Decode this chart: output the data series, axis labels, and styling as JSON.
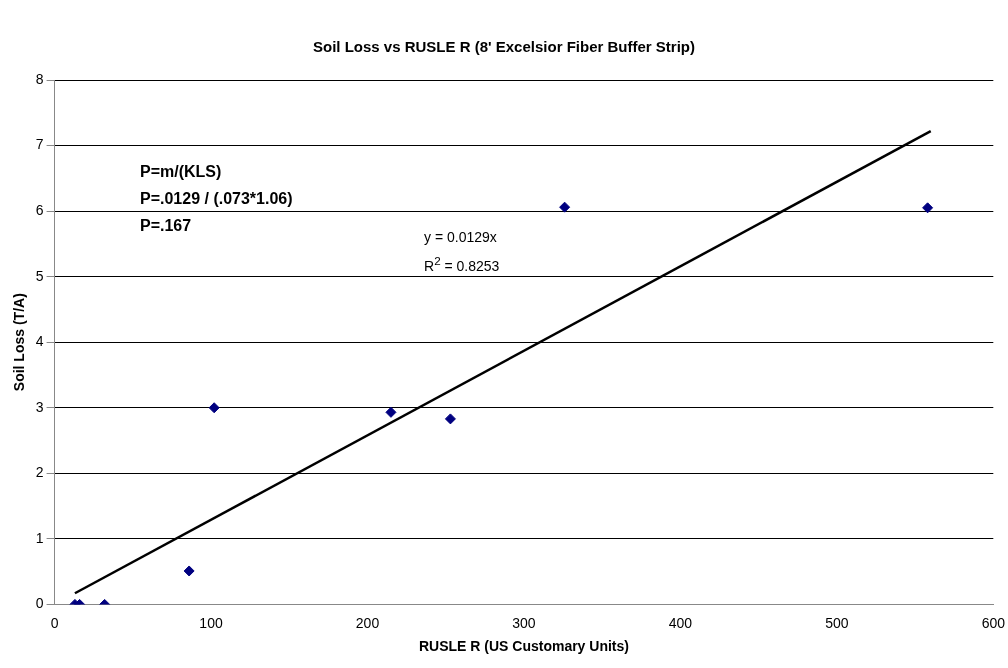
{
  "chart_data": {
    "type": "scatter",
    "title": "Soil Loss vs RUSLE R (8' Excelsior Fiber Buffer Strip)",
    "xlabel": "RUSLE R (US Customary Units)",
    "ylabel": "Soil Loss (T/A)",
    "x": [
      13,
      16,
      32,
      86,
      102,
      215,
      253,
      326,
      558
    ],
    "series": [
      {
        "color": "#000080",
        "marker": "diamond",
        "values": [
          0,
          0,
          0,
          0.51,
          3.0,
          2.93,
          2.83,
          6.06,
          6.05
        ]
      },
      {
        "type": "line",
        "color": "#000000",
        "marker": "none",
        "x": [
          13,
          560
        ],
        "values": [
          0.17,
          7.22
        ]
      }
    ],
    "xlim": [
      0,
      600
    ],
    "xticks": [
      0,
      100,
      200,
      300,
      400,
      500,
      600
    ],
    "ylim": [
      0,
      8
    ],
    "yticks": [
      0,
      1,
      2,
      3,
      4,
      5,
      6,
      7,
      8
    ],
    "grid": "y",
    "legend": false,
    "annotations": [
      "P=m/(KLS)",
      "P=.0129 / (.073*1.06)",
      "P=.167",
      "y = 0.0129x",
      "R$^{2}$ = 0.8253"
    ]
  }
}
